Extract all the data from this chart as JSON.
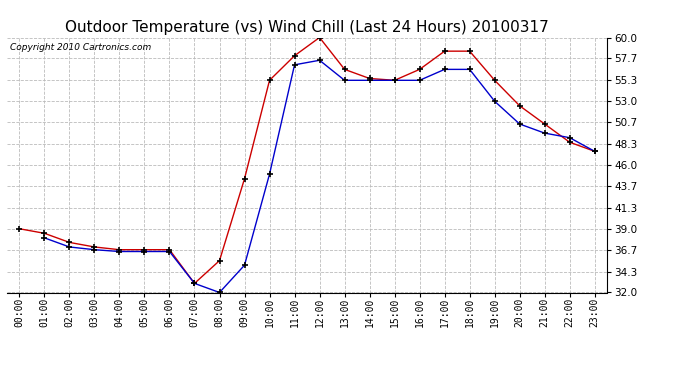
{
  "title": "Outdoor Temperature (vs) Wind Chill (Last 24 Hours) 20100317",
  "copyright_text": "Copyright 2010 Cartronics.com",
  "x_labels": [
    "00:00",
    "01:00",
    "02:00",
    "03:00",
    "04:00",
    "05:00",
    "06:00",
    "07:00",
    "08:00",
    "09:00",
    "10:00",
    "11:00",
    "12:00",
    "13:00",
    "14:00",
    "15:00",
    "16:00",
    "17:00",
    "18:00",
    "19:00",
    "20:00",
    "21:00",
    "22:00",
    "23:00"
  ],
  "temp_red": [
    39.0,
    38.5,
    37.5,
    37.0,
    36.7,
    36.7,
    36.7,
    33.0,
    35.5,
    44.5,
    55.3,
    58.0,
    60.0,
    56.5,
    55.5,
    55.3,
    56.5,
    58.5,
    58.5,
    55.3,
    52.5,
    50.5,
    48.5,
    47.5
  ],
  "wind_chill_blue": [
    null,
    38.0,
    37.0,
    36.7,
    36.5,
    36.5,
    36.5,
    33.0,
    32.0,
    35.0,
    45.0,
    57.0,
    57.5,
    55.3,
    55.3,
    55.3,
    55.3,
    56.5,
    56.5,
    53.0,
    50.5,
    49.5,
    49.0,
    47.5
  ],
  "ylim": [
    32.0,
    60.0
  ],
  "yticks": [
    32.0,
    34.3,
    36.7,
    39.0,
    41.3,
    43.7,
    46.0,
    48.3,
    50.7,
    53.0,
    55.3,
    57.7,
    60.0
  ],
  "background_color": "#ffffff",
  "plot_bg_color": "#ffffff",
  "grid_color": "#bbbbbb",
  "red_color": "#cc0000",
  "blue_color": "#0000cc",
  "title_fontsize": 11,
  "copyright_fontsize": 6.5,
  "tick_fontsize": 7,
  "ytick_fontsize": 7.5
}
